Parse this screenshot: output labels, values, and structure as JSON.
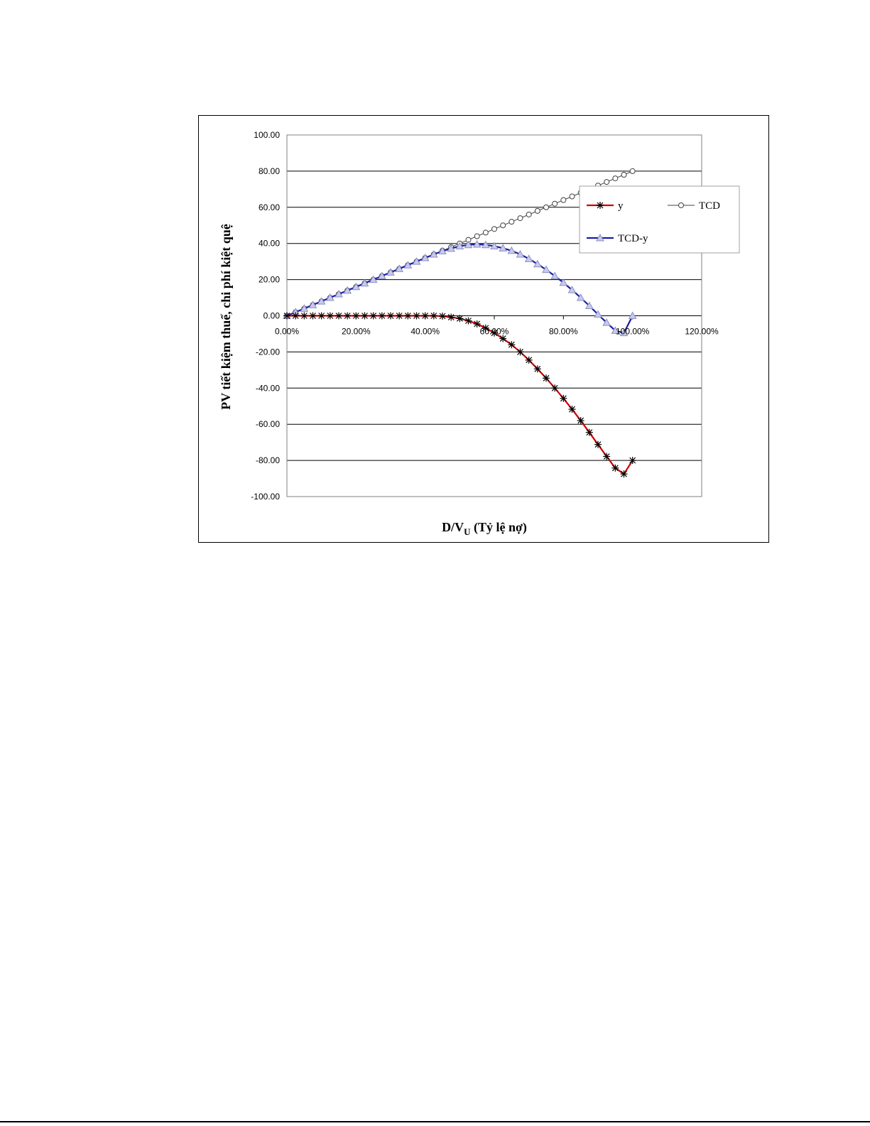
{
  "chart_data": {
    "type": "line",
    "xlabel": "D/V",
    "xlabel_sub": "U",
    "xlabel_suffix": " (Tỷ lệ nợ)",
    "ylabel": "PV tiết kiệm thuế, chi phí kiệt quệ",
    "xlim": [
      0,
      1.2
    ],
    "ylim": [
      -100,
      100
    ],
    "x_ticks": [
      0,
      0.2,
      0.4,
      0.6,
      0.8,
      1.0,
      1.2
    ],
    "x_tick_labels": [
      "0.00%",
      "20.00%",
      "40.00%",
      "60.00%",
      "80.00%",
      "100.00%",
      "120.00%"
    ],
    "y_ticks": [
      100,
      80,
      60,
      40,
      20,
      0,
      -20,
      -40,
      -60,
      -80,
      -100
    ],
    "y_tick_labels": [
      "100.00",
      "80.00",
      "60.00",
      "40.00",
      "20.00",
      "0.00",
      "-20.00",
      "-40.00",
      "-60.00",
      "-80.00",
      "-100.00"
    ],
    "grid": "horizontal",
    "legend_position": "right",
    "x": [
      0,
      0.025,
      0.05,
      0.075,
      0.1,
      0.125,
      0.15,
      0.175,
      0.2,
      0.225,
      0.25,
      0.275,
      0.3,
      0.325,
      0.35,
      0.375,
      0.4,
      0.425,
      0.45,
      0.475,
      0.5,
      0.525,
      0.55,
      0.575,
      0.6,
      0.625,
      0.65,
      0.675,
      0.7,
      0.725,
      0.75,
      0.775,
      0.8,
      0.825,
      0.85,
      0.875,
      0.9,
      0.925,
      0.95,
      0.975,
      1.0
    ],
    "series": [
      {
        "name": "y",
        "color": "#cc0000",
        "marker": "asterisk",
        "values": [
          0,
          0,
          0,
          0,
          0,
          0,
          0,
          0,
          0,
          0,
          0,
          0,
          0,
          0,
          0,
          0,
          0,
          0,
          -0.2,
          -0.8,
          -1.5,
          -2.8,
          -4.5,
          -6.8,
          -9.5,
          -12.6,
          -16.0,
          -20.0,
          -24.5,
          -29.4,
          -34.5,
          -40.0,
          -45.7,
          -51.7,
          -58.0,
          -64.5,
          -71.2,
          -77.8,
          -84.2,
          -87.5,
          -80.0
        ]
      },
      {
        "name": "TCD",
        "color": "#404040",
        "marker": "circle",
        "values": [
          0,
          2.0,
          4.0,
          6.0,
          8.0,
          10.0,
          12.0,
          14.0,
          16.0,
          18.0,
          20.0,
          22.0,
          24.0,
          26.0,
          28.0,
          30.0,
          32.0,
          34.0,
          36.0,
          38.0,
          40.0,
          42.0,
          44.0,
          46.0,
          48.0,
          50.0,
          52.0,
          54.0,
          56.0,
          58.0,
          60.0,
          62.0,
          64.0,
          66.0,
          68.0,
          70.0,
          72.0,
          74.0,
          76.0,
          78.0,
          80.0
        ]
      },
      {
        "name": "TCD-y",
        "color": "#1a1aa8",
        "marker": "triangle",
        "values": [
          0,
          2.0,
          4.0,
          6.0,
          8.0,
          10.0,
          12.0,
          14.0,
          16.0,
          18.0,
          20.0,
          22.0,
          24.0,
          26.0,
          28.0,
          30.0,
          32.0,
          34.0,
          35.8,
          37.2,
          38.5,
          39.2,
          39.5,
          39.2,
          38.5,
          37.4,
          36.0,
          34.0,
          31.5,
          28.6,
          25.5,
          22.0,
          18.3,
          14.3,
          10.0,
          5.5,
          0.8,
          -3.8,
          -8.2,
          -9.5,
          0
        ]
      }
    ]
  }
}
